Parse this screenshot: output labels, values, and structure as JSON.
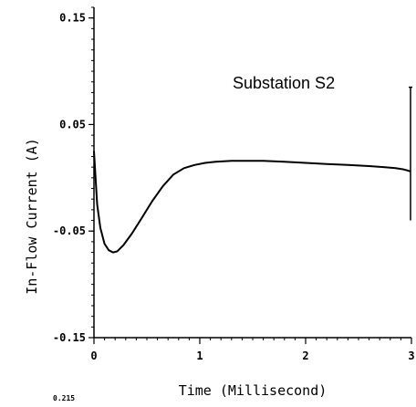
{
  "chart_data": {
    "type": "line",
    "title": "",
    "annotation": "Substation S2",
    "xlabel": "Time (Millisecond)",
    "ylabel": "In-Flow Current (A)",
    "xlim": [
      0,
      3
    ],
    "ylim": [
      -0.15,
      0.16
    ],
    "x_ticks": [
      0,
      1,
      2,
      3
    ],
    "x_tick_labels": [
      "0",
      "1",
      "2",
      "3"
    ],
    "y_ticks": [
      -0.15,
      -0.05,
      0.05,
      0.15
    ],
    "y_tick_labels": [
      "-0.15",
      "-0.05",
      "0.05",
      "0.15"
    ],
    "grid": false,
    "series": [
      {
        "x": [
          0,
          0.03,
          0.06,
          0.1,
          0.14,
          0.18,
          0.22,
          0.28,
          0.36,
          0.45,
          0.55,
          0.65,
          0.75,
          0.85,
          0.95,
          1.05,
          1.15,
          1.3,
          1.45,
          1.6,
          1.8,
          2.0,
          2.2,
          2.4,
          2.6,
          2.75,
          2.85,
          2.92,
          2.96,
          2.99
        ],
        "values": [
          0.025,
          -0.025,
          -0.047,
          -0.062,
          -0.068,
          -0.07,
          -0.069,
          -0.063,
          -0.052,
          -0.038,
          -0.022,
          -0.008,
          0.003,
          0.009,
          0.012,
          0.014,
          0.015,
          0.016,
          0.016,
          0.016,
          0.015,
          0.014,
          0.013,
          0.012,
          0.011,
          0.01,
          0.009,
          0.008,
          0.007,
          0.006
        ]
      }
    ],
    "spike": {
      "x": 3.0,
      "y_min": -0.04,
      "y_max": 0.085
    }
  },
  "bottom_artifact": "0.215"
}
